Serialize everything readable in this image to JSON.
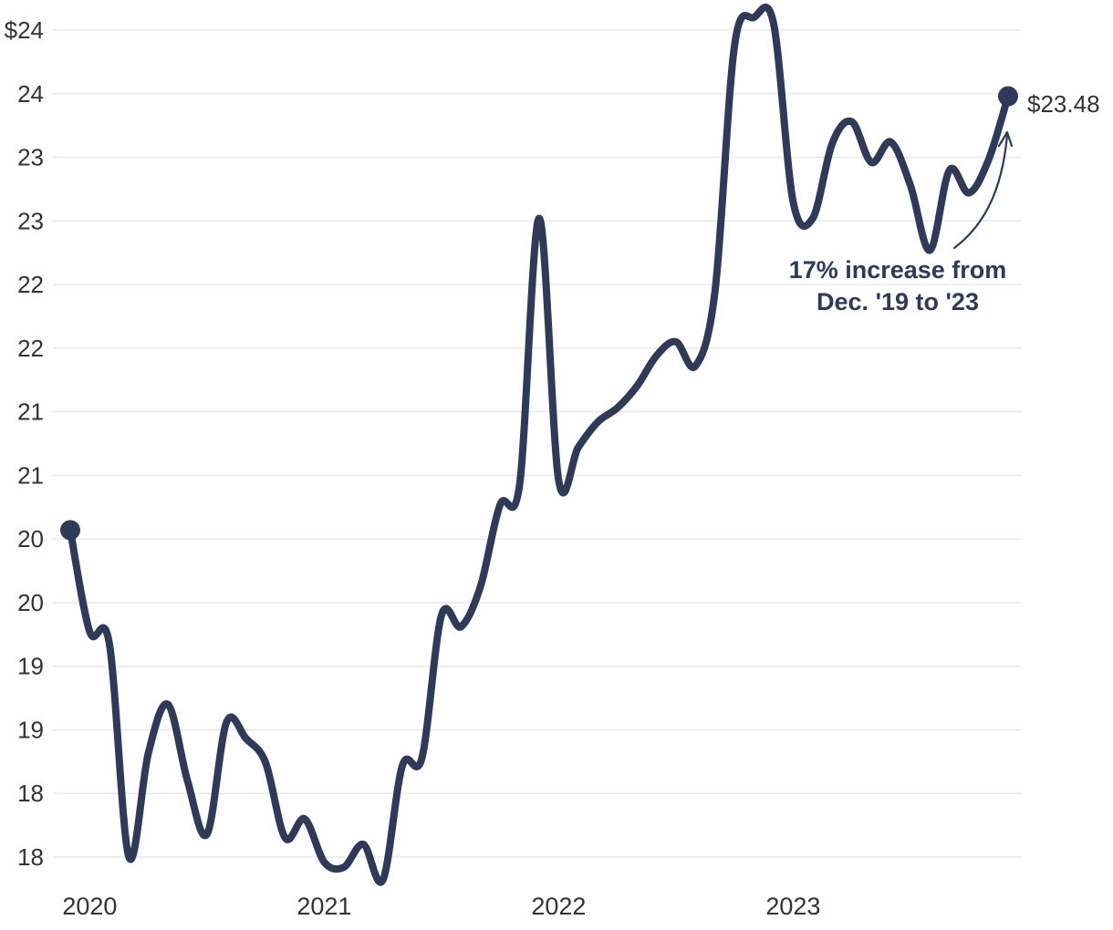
{
  "chart_data": {
    "type": "line",
    "frequency": "monthly",
    "x": [
      "2019-12",
      "2020-01",
      "2020-02",
      "2020-03",
      "2020-04",
      "2020-05",
      "2020-06",
      "2020-07",
      "2020-08",
      "2020-09",
      "2020-10",
      "2020-11",
      "2020-12",
      "2021-01",
      "2021-02",
      "2021-03",
      "2021-04",
      "2021-05",
      "2021-06",
      "2021-07",
      "2021-08",
      "2021-09",
      "2021-10",
      "2021-11",
      "2021-12",
      "2022-01",
      "2022-02",
      "2022-03",
      "2022-04",
      "2022-05",
      "2022-06",
      "2022-07",
      "2022-08",
      "2022-09",
      "2022-10",
      "2022-11",
      "2022-12",
      "2023-01",
      "2023-02",
      "2023-03",
      "2023-04",
      "2023-05",
      "2023-06",
      "2023-07",
      "2023-08",
      "2023-09",
      "2023-10",
      "2023-11",
      "2023-12"
    ],
    "values": [
      20.07,
      19.27,
      19.18,
      17.5,
      18.32,
      18.7,
      18.1,
      17.68,
      18.56,
      18.43,
      18.24,
      17.65,
      17.8,
      17.46,
      17.42,
      17.6,
      17.32,
      18.22,
      18.28,
      19.4,
      19.31,
      19.63,
      20.27,
      20.43,
      22.52,
      20.46,
      20.72,
      20.92,
      21.03,
      21.2,
      21.44,
      21.55,
      21.36,
      21.95,
      23.88,
      24.1,
      24.05,
      22.65,
      22.52,
      23.11,
      23.28,
      22.96,
      23.12,
      22.78,
      22.27,
      22.9,
      22.72,
      22.98,
      23.48
    ],
    "y_ticks": [
      {
        "label": "$24",
        "value": 24.0
      },
      {
        "label": "24",
        "value": 23.5
      },
      {
        "label": "23",
        "value": 23.0
      },
      {
        "label": "23",
        "value": 22.5
      },
      {
        "label": "22",
        "value": 22.0
      },
      {
        "label": "22",
        "value": 21.5
      },
      {
        "label": "21",
        "value": 21.0
      },
      {
        "label": "21",
        "value": 20.5
      },
      {
        "label": "20",
        "value": 20.0
      },
      {
        "label": "20",
        "value": 19.5
      },
      {
        "label": "19",
        "value": 19.0
      },
      {
        "label": "19",
        "value": 18.5
      },
      {
        "label": "18",
        "value": 18.0
      },
      {
        "label": "18",
        "value": 17.5
      }
    ],
    "x_ticks": [
      {
        "label": "2020",
        "month": "2020-01"
      },
      {
        "label": "2021",
        "month": "2021-01"
      },
      {
        "label": "2022",
        "month": "2022-01"
      },
      {
        "label": "2023",
        "month": "2023-01"
      }
    ],
    "ylim": [
      17.5,
      24.0
    ],
    "grid": "horizontal",
    "legend": "none",
    "title": "",
    "start_point_value": 20.07,
    "end_point_value": 23.48,
    "end_label": "$23.48",
    "annotation": {
      "line1": "17% increase from",
      "line2": "Dec. '19 to '23"
    },
    "colors": {
      "line": "#2f3a59",
      "grid": "#e8e8e8",
      "axis_text": "#333333",
      "annotation_text": "#2f3a59",
      "end_label_text": "#333333",
      "background": "#ffffff"
    }
  }
}
